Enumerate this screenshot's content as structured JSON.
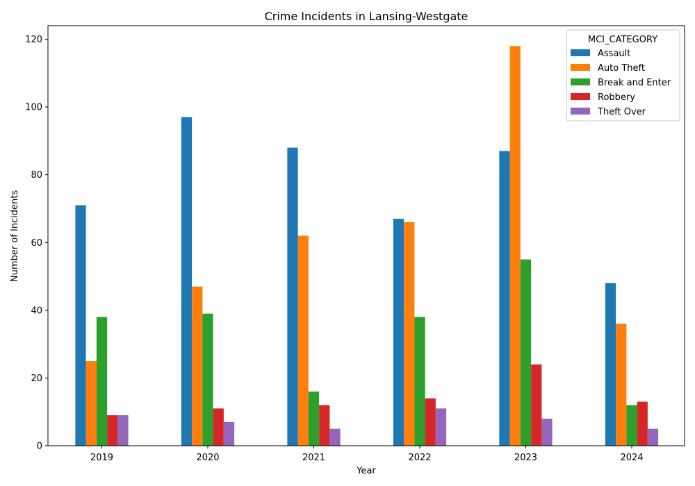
{
  "chart_data": {
    "type": "bar",
    "title": "Crime Incidents in Lansing-Westgate",
    "xlabel": "Year",
    "ylabel": "Number of Incidents",
    "categories": [
      "2019",
      "2020",
      "2021",
      "2022",
      "2023",
      "2024"
    ],
    "ylim": [
      0,
      124
    ],
    "yticks": [
      0,
      20,
      40,
      60,
      80,
      100,
      120
    ],
    "grid": false,
    "legend": {
      "title": "MCI_CATEGORY",
      "placement": "top-right"
    },
    "series": [
      {
        "name": "Assault",
        "color": "#1f77b4",
        "values": [
          71,
          97,
          88,
          67,
          87,
          48
        ]
      },
      {
        "name": "Auto Theft",
        "color": "#ff7f0e",
        "values": [
          25,
          47,
          62,
          66,
          118,
          36
        ]
      },
      {
        "name": "Break and Enter",
        "color": "#2ca02c",
        "values": [
          38,
          39,
          16,
          38,
          55,
          12
        ]
      },
      {
        "name": "Robbery",
        "color": "#d62728",
        "values": [
          9,
          11,
          12,
          14,
          24,
          13
        ]
      },
      {
        "name": "Theft Over",
        "color": "#9467bd",
        "values": [
          9,
          7,
          5,
          11,
          8,
          5
        ]
      }
    ]
  }
}
